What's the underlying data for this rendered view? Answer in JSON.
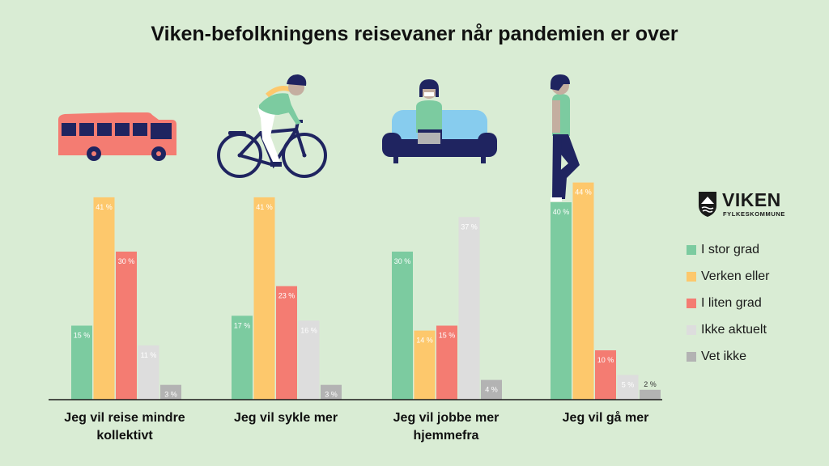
{
  "title": "Viken-befolkningens reisevaner når pandemien er over",
  "logo": {
    "brand": "VIKEN",
    "sub": "FYLKESKOMMUNE"
  },
  "colors": {
    "background": "#d9ecd4",
    "i_stor_grad": "#7ccba0",
    "verken_eller": "#fdc86c",
    "i_liten_grad": "#f47c72",
    "ikke_aktuelt": "#dddddd",
    "vet_ikke": "#b3b3b3",
    "illustration_bus": "#f47c72",
    "illustration_navy": "#1f2460",
    "illustration_sofa": "#87ccee"
  },
  "legend": {
    "items": [
      {
        "label": "I stor grad",
        "color": "#7ccba0"
      },
      {
        "label": "Verken eller",
        "color": "#fdc86c"
      },
      {
        "label": "I liten grad",
        "color": "#f47c72"
      },
      {
        "label": "Ikke aktuelt",
        "color": "#dddddd"
      },
      {
        "label": "Vet ikke",
        "color": "#b3b3b3"
      }
    ]
  },
  "illustrations": [
    "bus-icon",
    "cyclist-icon",
    "person-on-sofa-icon",
    "walking-person-icon"
  ],
  "chart_data": {
    "type": "bar",
    "title": "Viken-befolkningens reisevaner når pandemien er over",
    "categories": [
      "Jeg vil reise mindre kollektivt",
      "Jeg vil sykle mer",
      "Jeg vil jobbe mer hjemmefra",
      "Jeg vil gå mer"
    ],
    "series": [
      {
        "name": "I stor grad",
        "values": [
          15,
          17,
          30,
          40
        ]
      },
      {
        "name": "Verken eller",
        "values": [
          41,
          41,
          14,
          44
        ]
      },
      {
        "name": "I liten grad",
        "values": [
          30,
          23,
          15,
          10
        ]
      },
      {
        "name": "Ikke aktuelt",
        "values": [
          11,
          16,
          37,
          5
        ]
      },
      {
        "name": "Vet ikke",
        "values": [
          3,
          3,
          4,
          2
        ]
      }
    ],
    "value_suffix": " %",
    "xlabel": "",
    "ylabel": "",
    "ylim": [
      0,
      50
    ],
    "grid": false,
    "legend_position": "right"
  }
}
